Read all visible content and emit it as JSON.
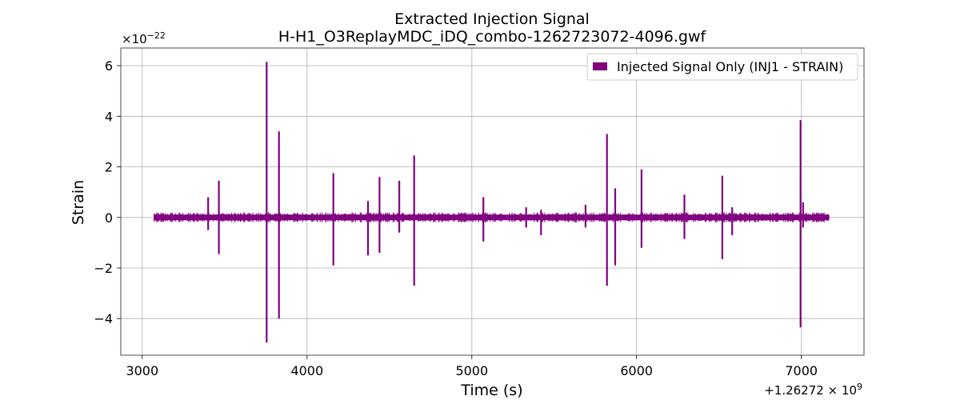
{
  "chart_data": {
    "type": "line",
    "title": "Extracted Injection Signal",
    "subtitle": "H-H1_O3ReplayMDC_iDQ_combo-1262723072-4096.gwf",
    "xlabel": "Time (s)",
    "ylabel": "Strain",
    "x_offset_label": "+1.26272 × 10",
    "x_offset_exponent": "9",
    "y_multiplier_label": "×10",
    "y_multiplier_exponent": "−22",
    "xlim": [
      2870,
      7380
    ],
    "ylim": [
      -5.45,
      6.7
    ],
    "xticks": [
      3000,
      4000,
      5000,
      6000,
      7000
    ],
    "xtick_labels": [
      "3000",
      "4000",
      "5000",
      "6000",
      "7000"
    ],
    "yticks": [
      -4,
      -2,
      0,
      2,
      4,
      6
    ],
    "ytick_labels": [
      "−4",
      "−2",
      "0",
      "2",
      "4",
      "6"
    ],
    "grid": true,
    "legend_position": "top-right",
    "line_color": "#800080",
    "series": [
      {
        "name": "Injected Signal Only (INJ1 - STRAIN)",
        "x_range": [
          3072,
          7168
        ],
        "baseline_amplitude": 0.2,
        "spikes": [
          {
            "x": 3400,
            "high": 0.8,
            "low": -0.5
          },
          {
            "x": 3465,
            "high": 1.45,
            "low": -1.45
          },
          {
            "x": 3755,
            "high": 6.15,
            "low": -4.95
          },
          {
            "x": 3830,
            "high": 3.4,
            "low": -4.0
          },
          {
            "x": 4160,
            "high": 1.75,
            "low": -1.9
          },
          {
            "x": 4370,
            "high": 0.65,
            "low": -1.5
          },
          {
            "x": 4440,
            "high": 1.6,
            "low": -1.4
          },
          {
            "x": 4560,
            "high": 1.45,
            "low": -0.6
          },
          {
            "x": 4650,
            "high": 2.45,
            "low": -2.7
          },
          {
            "x": 5070,
            "high": 0.8,
            "low": -0.95
          },
          {
            "x": 5330,
            "high": 0.4,
            "low": -0.4
          },
          {
            "x": 5420,
            "high": 0.3,
            "low": -0.7
          },
          {
            "x": 5690,
            "high": 0.5,
            "low": -0.4
          },
          {
            "x": 5820,
            "high": 3.3,
            "low": -2.7
          },
          {
            "x": 5870,
            "high": 1.15,
            "low": -1.9
          },
          {
            "x": 6030,
            "high": 1.9,
            "low": -1.2
          },
          {
            "x": 6290,
            "high": 0.9,
            "low": -0.85
          },
          {
            "x": 6520,
            "high": 1.65,
            "low": -1.65
          },
          {
            "x": 6580,
            "high": 0.4,
            "low": -0.7
          },
          {
            "x": 6995,
            "high": 3.85,
            "low": -4.35
          },
          {
            "x": 7010,
            "high": 0.6,
            "low": -0.4
          }
        ]
      }
    ]
  }
}
